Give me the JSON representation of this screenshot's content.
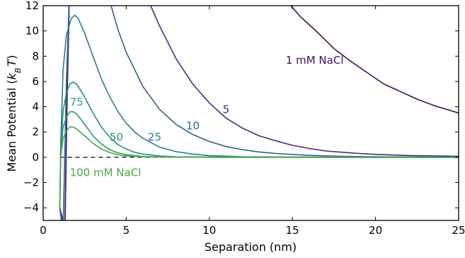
{
  "chart_data": {
    "type": "line",
    "xlabel": "Separation (nm)",
    "ylabel_main": "Mean Potential (",
    "ylabel_k": "k",
    "ylabel_sub": "B",
    "ylabel_T": "T",
    "ylabel_close": ")",
    "xlim": [
      0,
      25
    ],
    "ylim": [
      -5,
      12
    ],
    "x_ticks": [
      0,
      5,
      10,
      15,
      20,
      25
    ],
    "y_ticks": [
      -4,
      -2,
      0,
      2,
      4,
      6,
      8,
      10,
      12
    ],
    "y_tick_labels": [
      "−4",
      "−2",
      "0",
      "2",
      "4",
      "6",
      "8",
      "10",
      "12"
    ],
    "zero_line": true,
    "grid": false,
    "series": [
      {
        "label": "1 mM NaCl",
        "color": "#3f0f5e",
        "label_at": [
          14.6,
          7.4
        ],
        "points": [
          [
            1.0,
            -4.0
          ],
          [
            1.3,
            -7.0
          ],
          [
            1.45,
            5.0
          ],
          [
            1.6,
            14.0
          ],
          [
            14.5,
            12.6
          ],
          [
            15.5,
            11.1
          ],
          [
            16.5,
            9.9
          ],
          [
            17.5,
            8.6
          ],
          [
            18.5,
            7.6
          ],
          [
            19.5,
            6.7
          ],
          [
            20.5,
            5.8
          ],
          [
            21.5,
            5.2
          ],
          [
            22.5,
            4.6
          ],
          [
            23.5,
            4.1
          ],
          [
            24.5,
            3.7
          ],
          [
            25.0,
            3.5
          ]
        ]
      },
      {
        "label": "5",
        "color": "#45307f",
        "label_at": [
          10.8,
          3.5
        ],
        "points": [
          [
            1.0,
            -4.0
          ],
          [
            1.3,
            -5.5
          ],
          [
            1.45,
            6.0
          ],
          [
            1.6,
            14.0
          ],
          [
            6.3,
            12.5
          ],
          [
            7.0,
            10.4
          ],
          [
            8.0,
            7.8
          ],
          [
            9.0,
            5.8
          ],
          [
            10.0,
            4.3
          ],
          [
            11.0,
            3.1
          ],
          [
            12.0,
            2.3
          ],
          [
            13.0,
            1.7
          ],
          [
            14.0,
            1.3
          ],
          [
            15.0,
            0.95
          ],
          [
            16.0,
            0.7
          ],
          [
            17.0,
            0.5
          ],
          [
            18.0,
            0.4
          ],
          [
            19.0,
            0.3
          ],
          [
            20.0,
            0.23
          ],
          [
            22.0,
            0.14
          ],
          [
            25.0,
            0.08
          ]
        ]
      },
      {
        "label": "10",
        "color": "#355f8c",
        "label_at": [
          8.6,
          2.2
        ],
        "points": [
          [
            1.0,
            -4.0
          ],
          [
            1.2,
            -5.5
          ],
          [
            1.4,
            6.0
          ],
          [
            1.6,
            14.0
          ],
          [
            4.0,
            12.4
          ],
          [
            4.5,
            10.1
          ],
          [
            5.0,
            8.3
          ],
          [
            6.0,
            5.6
          ],
          [
            7.0,
            3.8
          ],
          [
            8.0,
            2.6
          ],
          [
            9.0,
            1.8
          ],
          [
            10.0,
            1.25
          ],
          [
            11.0,
            0.85
          ],
          [
            12.0,
            0.6
          ],
          [
            13.0,
            0.42
          ],
          [
            14.0,
            0.3
          ],
          [
            16.0,
            0.15
          ],
          [
            18.0,
            0.08
          ],
          [
            20.0,
            0.04
          ],
          [
            25.0,
            0.01
          ]
        ]
      },
      {
        "label": "25",
        "color": "#2a7e8c",
        "label_at": [
          6.3,
          1.3
        ],
        "points": [
          [
            1.0,
            -4.0
          ],
          [
            1.05,
            1.0
          ],
          [
            1.2,
            7.0
          ],
          [
            1.4,
            9.7
          ],
          [
            1.7,
            11.0
          ],
          [
            1.9,
            11.25
          ],
          [
            2.1,
            11.0
          ],
          [
            2.5,
            9.8
          ],
          [
            3.0,
            8.0
          ],
          [
            3.5,
            6.2
          ],
          [
            4.0,
            4.8
          ],
          [
            4.5,
            3.6
          ],
          [
            5.0,
            2.7
          ],
          [
            5.5,
            2.0
          ],
          [
            6.0,
            1.5
          ],
          [
            7.0,
            0.8
          ],
          [
            8.0,
            0.45
          ],
          [
            9.0,
            0.25
          ],
          [
            10.0,
            0.14
          ],
          [
            12.0,
            0.04
          ],
          [
            15.0,
            0.01
          ],
          [
            25.0,
            0.0
          ]
        ]
      },
      {
        "label": "50",
        "color": "#24907c",
        "label_at": [
          4.0,
          1.3
        ],
        "points": [
          [
            1.0,
            -4.0
          ],
          [
            1.05,
            0.5
          ],
          [
            1.2,
            3.7
          ],
          [
            1.4,
            5.1
          ],
          [
            1.6,
            5.8
          ],
          [
            1.8,
            5.95
          ],
          [
            2.0,
            5.8
          ],
          [
            2.4,
            5.0
          ],
          [
            3.0,
            3.5
          ],
          [
            3.5,
            2.4
          ],
          [
            4.0,
            1.6
          ],
          [
            4.5,
            1.0
          ],
          [
            5.0,
            0.65
          ],
          [
            5.5,
            0.4
          ],
          [
            6.0,
            0.25
          ],
          [
            7.0,
            0.1
          ],
          [
            8.0,
            0.04
          ],
          [
            10.0,
            0.0
          ],
          [
            25.0,
            0.0
          ]
        ]
      },
      {
        "label": "75",
        "color": "#2d9e6a",
        "label_at": [
          1.6,
          4.1
        ],
        "points": [
          [
            1.0,
            -4.0
          ],
          [
            1.05,
            0.3
          ],
          [
            1.2,
            2.4
          ],
          [
            1.4,
            3.2
          ],
          [
            1.6,
            3.6
          ],
          [
            1.8,
            3.6
          ],
          [
            2.0,
            3.45
          ],
          [
            2.5,
            2.6
          ],
          [
            3.0,
            1.7
          ],
          [
            3.5,
            1.05
          ],
          [
            4.0,
            0.6
          ],
          [
            4.5,
            0.35
          ],
          [
            5.0,
            0.2
          ],
          [
            6.0,
            0.06
          ],
          [
            7.0,
            0.02
          ],
          [
            25.0,
            0.0
          ]
        ]
      },
      {
        "label": "100 mM NaCl",
        "color": "#48a844",
        "label_at": [
          1.6,
          -1.5
        ],
        "points": [
          [
            1.0,
            -4.0
          ],
          [
            1.05,
            0.0
          ],
          [
            1.2,
            1.5
          ],
          [
            1.4,
            2.1
          ],
          [
            1.6,
            2.4
          ],
          [
            1.8,
            2.4
          ],
          [
            2.0,
            2.25
          ],
          [
            2.5,
            1.7
          ],
          [
            3.0,
            1.1
          ],
          [
            3.5,
            0.65
          ],
          [
            4.0,
            0.38
          ],
          [
            4.5,
            0.2
          ],
          [
            5.0,
            0.1
          ],
          [
            6.0,
            0.03
          ],
          [
            25.0,
            0.0
          ]
        ]
      }
    ]
  }
}
